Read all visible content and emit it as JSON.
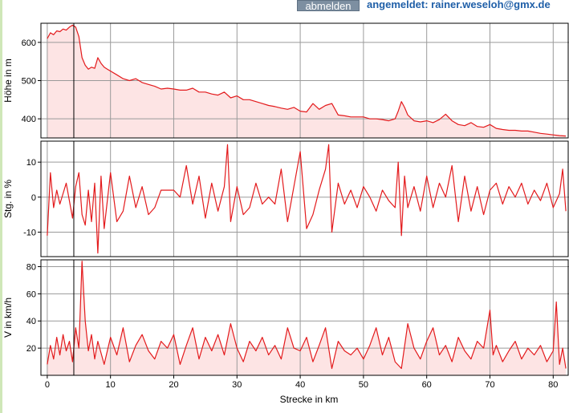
{
  "header": {
    "logout_label": "abmelden",
    "login_status": "angemeldet: rainer.weseloh@gmx.de"
  },
  "colors": {
    "line": "#e31a1c",
    "fill": "#fde4e4",
    "grid": "#9a9a9a",
    "accent": "#1f5fa8",
    "button": "#7d8fa1"
  },
  "chart_data": [
    {
      "type": "area",
      "ylabel": "Höhe in m",
      "xlim": [
        -1,
        82.5
      ],
      "ylim": [
        350,
        650
      ],
      "yticks": [
        400,
        500,
        600
      ],
      "grid": true,
      "x": [
        0,
        0.5,
        1,
        1.5,
        2,
        2.5,
        3,
        3.5,
        4,
        4.5,
        5,
        5.5,
        6,
        6.5,
        7,
        7.5,
        8,
        8.5,
        9,
        9.5,
        10,
        11,
        12,
        13,
        14,
        15,
        16,
        17,
        18,
        19,
        20,
        21,
        22,
        23,
        24,
        25,
        26,
        27,
        28,
        29,
        30,
        31,
        32,
        33,
        34,
        35,
        36,
        37,
        38,
        39,
        40,
        41,
        42,
        43,
        44,
        45,
        46,
        47,
        48,
        49,
        50,
        51,
        52,
        53,
        54,
        55,
        55.5,
        56,
        56.5,
        57,
        58,
        59,
        60,
        61,
        62,
        63,
        64,
        65,
        66,
        67,
        68,
        69,
        70,
        71,
        72,
        73,
        74,
        75,
        76,
        77,
        78,
        79,
        80,
        81,
        82
      ],
      "values": [
        610,
        625,
        620,
        630,
        628,
        635,
        632,
        640,
        645,
        640,
        615,
        560,
        540,
        530,
        535,
        532,
        560,
        545,
        535,
        530,
        525,
        515,
        505,
        500,
        505,
        495,
        490,
        485,
        478,
        480,
        478,
        475,
        475,
        480,
        470,
        470,
        465,
        462,
        470,
        455,
        460,
        450,
        450,
        445,
        440,
        435,
        432,
        428,
        425,
        430,
        420,
        418,
        440,
        425,
        435,
        440,
        410,
        408,
        405,
        405,
        405,
        400,
        400,
        398,
        395,
        400,
        420,
        445,
        430,
        410,
        395,
        392,
        395,
        390,
        398,
        412,
        395,
        385,
        382,
        390,
        380,
        378,
        385,
        375,
        372,
        370,
        370,
        368,
        368,
        365,
        362,
        360,
        358,
        356,
        355
      ]
    },
    {
      "type": "line",
      "ylabel": "Stg. in %",
      "xlim": [
        -1,
        82.5
      ],
      "ylim": [
        -17,
        16
      ],
      "yticks": [
        -10,
        0,
        10
      ],
      "grid": true,
      "x": [
        0,
        0.5,
        1,
        1.5,
        2,
        3,
        4,
        4.5,
        5,
        5.5,
        6,
        6.5,
        7,
        7.5,
        8,
        8.5,
        9,
        10,
        11,
        12,
        13,
        14,
        15,
        16,
        17,
        18,
        19,
        20,
        21,
        22,
        23,
        24,
        25,
        26,
        27,
        28,
        28.5,
        29,
        30,
        31,
        32,
        33,
        34,
        35,
        36,
        37,
        38,
        39,
        40,
        41,
        42,
        43,
        44,
        44.5,
        45,
        46,
        47,
        48,
        49,
        50,
        51,
        52,
        53,
        54,
        55,
        55.5,
        56,
        56.5,
        57,
        58,
        59,
        60,
        61,
        62,
        63,
        64,
        65,
        66,
        67,
        68,
        69,
        70,
        71,
        72,
        73,
        74,
        75,
        76,
        77,
        78,
        79,
        80,
        81,
        81.5,
        82
      ],
      "values": [
        -11,
        7,
        -3,
        2,
        -2,
        4,
        -6,
        3,
        7,
        -5,
        -8,
        2,
        -7,
        4,
        -16,
        6,
        -9,
        7,
        -7,
        -4,
        6,
        -3,
        3,
        -5,
        -3,
        2,
        2,
        2,
        0,
        9,
        -2,
        6,
        -6,
        4,
        -4,
        3,
        15,
        -7,
        3,
        -5,
        -3,
        4,
        -2,
        0,
        -2,
        8,
        -7,
        3,
        13,
        -9,
        -5,
        2,
        8,
        15,
        -10,
        4,
        -2,
        2,
        -3,
        3,
        0,
        -4,
        2,
        -1,
        -3,
        10,
        -11,
        6,
        -3,
        3,
        -4,
        6,
        -3,
        4,
        0,
        9,
        -7,
        6,
        -4,
        3,
        -5,
        2,
        4,
        -2,
        3,
        0,
        4,
        -2,
        2,
        -1,
        4,
        -3,
        1,
        8,
        -4
      ]
    },
    {
      "type": "area",
      "ylabel": "V in km/h",
      "xlabel": "Strecke in km",
      "xlim": [
        -1,
        82.5
      ],
      "xticks": [
        0,
        10,
        20,
        30,
        40,
        50,
        60,
        70,
        80
      ],
      "ylim": [
        0,
        85
      ],
      "yticks": [
        20,
        40,
        60,
        80
      ],
      "grid": true,
      "x": [
        0,
        0.5,
        1,
        1.5,
        2,
        2.5,
        3,
        3.5,
        4,
        4.5,
        5,
        5.5,
        6,
        6.5,
        7,
        7.5,
        8,
        9,
        10,
        11,
        12,
        13,
        14,
        15,
        16,
        17,
        18,
        19,
        20,
        21,
        22,
        23,
        24,
        25,
        26,
        27,
        28,
        29,
        30,
        31,
        32,
        33,
        34,
        35,
        36,
        37,
        38,
        39,
        40,
        41,
        42,
        43,
        44,
        45,
        46,
        47,
        48,
        49,
        50,
        51,
        52,
        53,
        54,
        55,
        56,
        57,
        58,
        59,
        60,
        61,
        62,
        63,
        64,
        65,
        66,
        67,
        68,
        69,
        70,
        70.5,
        71,
        72,
        73,
        74,
        75,
        76,
        77,
        78,
        79,
        80,
        80.5,
        81,
        81.5,
        82
      ],
      "values": [
        8,
        22,
        12,
        28,
        15,
        30,
        18,
        25,
        10,
        35,
        20,
        84,
        40,
        18,
        30,
        12,
        25,
        8,
        28,
        15,
        35,
        10,
        22,
        30,
        18,
        12,
        25,
        20,
        30,
        8,
        22,
        35,
        12,
        28,
        18,
        30,
        15,
        38,
        20,
        10,
        25,
        18,
        28,
        15,
        22,
        12,
        35,
        20,
        18,
        28,
        10,
        22,
        35,
        5,
        25,
        18,
        15,
        20,
        12,
        22,
        35,
        15,
        28,
        10,
        5,
        38,
        20,
        12,
        25,
        35,
        15,
        22,
        10,
        28,
        18,
        12,
        25,
        20,
        48,
        15,
        22,
        10,
        18,
        25,
        12,
        20,
        15,
        22,
        10,
        18,
        54,
        8,
        20,
        5
      ]
    }
  ]
}
